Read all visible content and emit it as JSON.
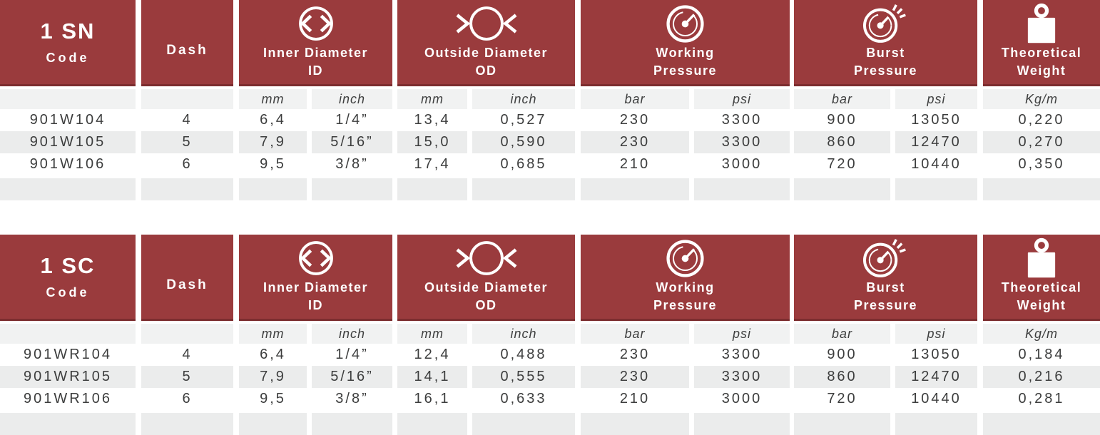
{
  "colors": {
    "header_red": "#9a3b3d",
    "header_red_dark_edge": "#7c2d2f",
    "row_alt_gray": "#ebecec",
    "units_row_gray": "#f1f2f2",
    "data_text": "#3c3d3d"
  },
  "labels": {
    "code": "Code",
    "dash": "Dash",
    "inner_diameter": "Inner Diameter",
    "inner_diameter_abbr": "ID",
    "outside_diameter": "Outside Diameter",
    "outside_diameter_abbr": "OD",
    "working_pressure_line1": "Working",
    "working_pressure_line2": "Pressure",
    "burst_pressure_line1": "Burst",
    "burst_pressure_line2": "Pressure",
    "theoretical_weight_line1": "Theoretical",
    "theoretical_weight_line2": "Weight"
  },
  "units": {
    "mm": "mm",
    "inch": "inch",
    "bar": "bar",
    "psi": "psi",
    "kg_per_m": "Kg/m"
  },
  "icons": {
    "inner_diameter": "circle-with-outward-arrows-icon",
    "outside_diameter": "circle-with-inward-arrows-icon",
    "working_pressure": "pressure-gauge-icon",
    "burst_pressure": "pressure-gauge-burst-icon",
    "theoretical_weight": "weight-icon"
  },
  "tables": [
    {
      "title": "1 SN",
      "rows": [
        {
          "code": "901W104",
          "dash": "4",
          "id_mm": "6,4",
          "id_inch": "1/4”",
          "od_mm": "13,4",
          "od_inch": "0,527",
          "wp_bar": "230",
          "wp_psi": "3300",
          "bp_bar": "900",
          "bp_psi": "13050",
          "weight_kg_m": "0,220"
        },
        {
          "code": "901W105",
          "dash": "5",
          "id_mm": "7,9",
          "id_inch": "5/16”",
          "od_mm": "15,0",
          "od_inch": "0,590",
          "wp_bar": "230",
          "wp_psi": "3300",
          "bp_bar": "860",
          "bp_psi": "12470",
          "weight_kg_m": "0,270"
        },
        {
          "code": "901W106",
          "dash": "6",
          "id_mm": "9,5",
          "id_inch": "3/8”",
          "od_mm": "17,4",
          "od_inch": "0,685",
          "wp_bar": "210",
          "wp_psi": "3000",
          "bp_bar": "720",
          "bp_psi": "10440",
          "weight_kg_m": "0,350"
        }
      ]
    },
    {
      "title": "1 SC",
      "rows": [
        {
          "code": "901WR104",
          "dash": "4",
          "id_mm": "6,4",
          "id_inch": "1/4”",
          "od_mm": "12,4",
          "od_inch": "0,488",
          "wp_bar": "230",
          "wp_psi": "3300",
          "bp_bar": "900",
          "bp_psi": "13050",
          "weight_kg_m": "0,184"
        },
        {
          "code": "901WR105",
          "dash": "5",
          "id_mm": "7,9",
          "id_inch": "5/16”",
          "od_mm": "14,1",
          "od_inch": "0,555",
          "wp_bar": "230",
          "wp_psi": "3300",
          "bp_bar": "860",
          "bp_psi": "12470",
          "weight_kg_m": "0,216"
        },
        {
          "code": "901WR106",
          "dash": "6",
          "id_mm": "9,5",
          "id_inch": "3/8”",
          "od_mm": "16,1",
          "od_inch": "0,633",
          "wp_bar": "210",
          "wp_psi": "3000",
          "bp_bar": "720",
          "bp_psi": "10440",
          "weight_kg_m": "0,281"
        }
      ]
    }
  ]
}
